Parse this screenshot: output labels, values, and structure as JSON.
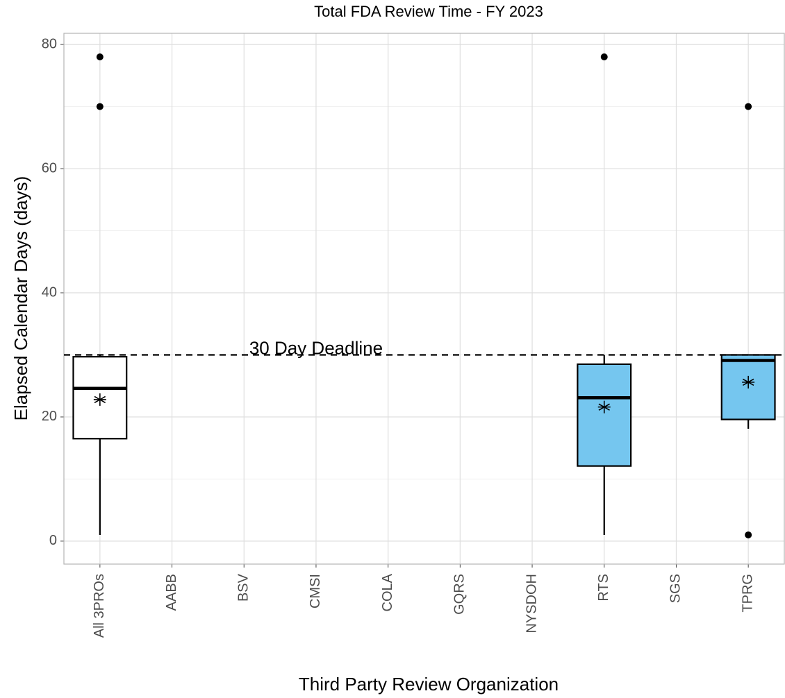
{
  "chart_data": {
    "type": "box",
    "title": "Total FDA Review Time - FY 2023",
    "x_label": "Third Party Review Organization",
    "y_label": "Elapsed Calendar Days (days)",
    "categories": [
      "All 3PROs",
      "AABB",
      "BSV",
      "CMSI",
      "COLA",
      "GQRS",
      "NYSDOH",
      "RTS",
      "SGS",
      "TPRG"
    ],
    "boxes": [
      {
        "min": 1,
        "q1": 16.5,
        "median": 24.6,
        "q3": 29.7,
        "max": 30,
        "mean": 22.8,
        "outliers": [
          70,
          78
        ],
        "color": "#ffffff"
      },
      null,
      null,
      null,
      null,
      null,
      null,
      {
        "min": 1,
        "q1": 12.1,
        "median": 23.1,
        "q3": 28.5,
        "max": 30,
        "mean": 21.6,
        "outliers": [
          78
        ],
        "color": "#75c6ef"
      },
      null,
      {
        "min": 18.1,
        "q1": 19.6,
        "median": 29.1,
        "q3": 30,
        "max": 30,
        "mean": 25.6,
        "outliers": [
          1,
          70
        ],
        "color": "#75c6ef"
      }
    ],
    "reference_line": {
      "value": 30,
      "label": "30 Day Deadline"
    },
    "ylim": [
      -3.7,
      81.8
    ],
    "yticks": [
      0,
      20,
      40,
      60,
      80
    ],
    "yminorticks": [
      10,
      30,
      50,
      70
    ],
    "grid": true
  }
}
